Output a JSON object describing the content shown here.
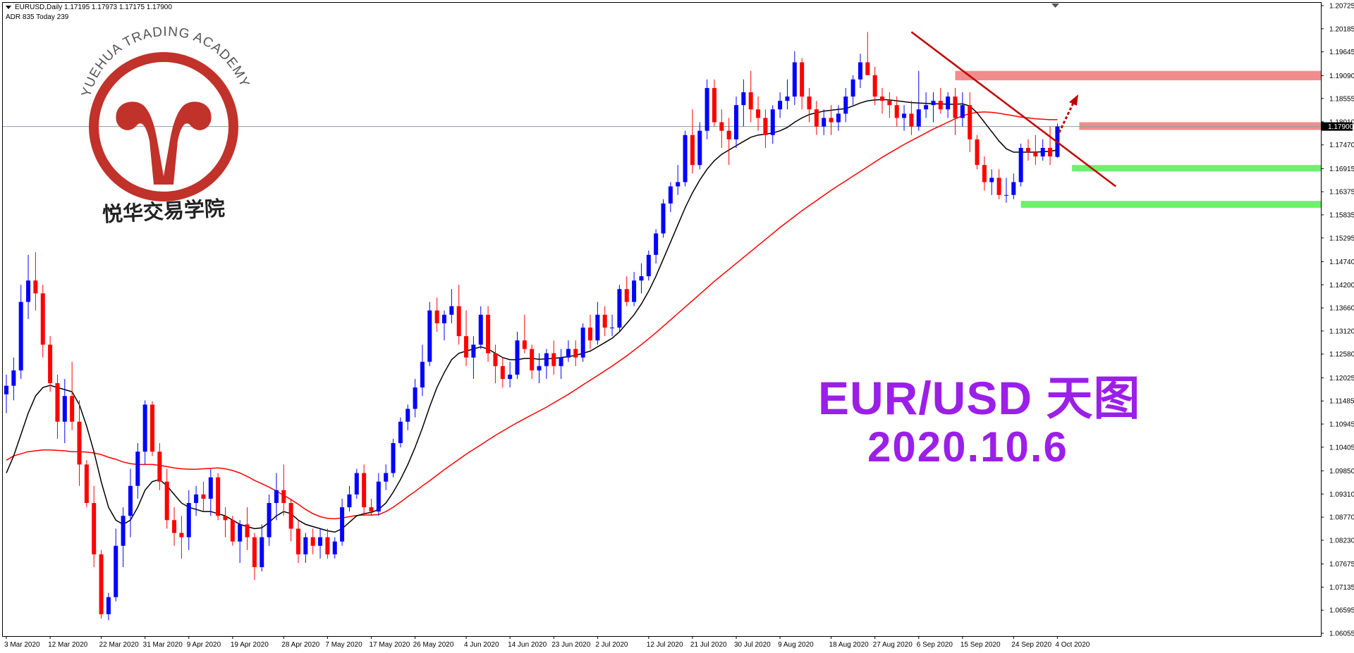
{
  "header": {
    "symbol_line": "EURUSD,Daily  1.17195 1.17973 1.17175 1.17900",
    "adr_line": "ADR 835  Today 239"
  },
  "overlay": {
    "title": "EUR/USD 天图",
    "date": "2020.10.6"
  },
  "logo": {
    "name_en": "YUEHUA TRADING ACADEMY",
    "name_cn": "悦华交易学院"
  },
  "colors": {
    "bull": "#0000ff",
    "bear": "#ff0000",
    "ma_fast": "#000000",
    "ma_slow": "#ff0000",
    "trendline": "#c00000",
    "resistance_zone": "#f08080",
    "support_zone": "#66ee66",
    "overlay_text": "#9b1fe8",
    "logo": "#c0322a",
    "price_tag_bg": "#000000"
  },
  "chart_data": {
    "type": "candlestick",
    "symbol": "EURUSD",
    "timeframe": "Daily",
    "current_price": "1.17900",
    "ylim": [
      1.06055,
      1.20725
    ],
    "y_ticks": [
      "1.20725",
      "1.20185",
      "1.19645",
      "1.19090",
      "1.18555",
      "1.18010",
      "1.17470",
      "1.16915",
      "1.16375",
      "1.15835",
      "1.15295",
      "1.14740",
      "1.14200",
      "1.13660",
      "1.13120",
      "1.12580",
      "1.12025",
      "1.11485",
      "1.10945",
      "1.10405",
      "1.09850",
      "1.09310",
      "1.08770",
      "1.08230",
      "1.07675",
      "1.07135",
      "1.06595",
      "1.06055"
    ],
    "x_ticks": [
      "3 Mar 2020",
      "12 Mar 2020",
      "22 Mar 2020",
      "31 Mar 2020",
      "9 Apr 2020",
      "19 Apr 2020",
      "28 Apr 2020",
      "7 May 2020",
      "17 May 2020",
      "26 May 2020",
      "4 Jun 2020",
      "14 Jun 2020",
      "23 Jun 2020",
      "2 Jul 2020",
      "12 Jul 2020",
      "21 Jul 2020",
      "30 Jul 2020",
      "9 Aug 2020",
      "18 Aug 2020",
      "27 Aug 2020",
      "6 Sep 2020",
      "15 Sep 2020",
      "24 Sep 2020",
      "4 Oct 2020"
    ],
    "series": [
      {
        "name": "",
        "kind": "ma_fast"
      },
      {
        "name": "",
        "kind": "ma_slow"
      }
    ],
    "candles": [
      [
        1.1164,
        1.121,
        1.112,
        1.1184
      ],
      [
        1.1184,
        1.125,
        1.115,
        1.122
      ],
      [
        1.122,
        1.142,
        1.12,
        1.138
      ],
      [
        1.138,
        1.149,
        1.134,
        1.143
      ],
      [
        1.143,
        1.1496,
        1.136,
        1.14
      ],
      [
        1.14,
        1.142,
        1.125,
        1.128
      ],
      [
        1.128,
        1.13,
        1.117,
        1.119
      ],
      [
        1.119,
        1.121,
        1.106,
        1.11
      ],
      [
        1.11,
        1.12,
        1.105,
        1.116
      ],
      [
        1.116,
        1.124,
        1.108,
        1.11
      ],
      [
        1.11,
        1.115,
        1.095,
        1.1
      ],
      [
        1.1,
        1.101,
        1.09,
        1.091
      ],
      [
        1.091,
        1.095,
        1.076,
        1.079
      ],
      [
        1.079,
        1.08,
        1.064,
        1.065
      ],
      [
        1.065,
        1.07,
        1.0636,
        1.069
      ],
      [
        1.069,
        1.085,
        1.068,
        1.081
      ],
      [
        1.081,
        1.09,
        1.076,
        1.088
      ],
      [
        1.088,
        1.099,
        1.083,
        1.095
      ],
      [
        1.095,
        1.105,
        1.092,
        1.103
      ],
      [
        1.103,
        1.115,
        1.1,
        1.114
      ],
      [
        1.114,
        1.1148,
        1.102,
        1.103
      ],
      [
        1.103,
        1.105,
        1.094,
        1.096
      ],
      [
        1.096,
        1.099,
        1.085,
        1.087
      ],
      [
        1.087,
        1.09,
        1.081,
        1.084
      ],
      [
        1.084,
        1.088,
        1.078,
        1.083
      ],
      [
        1.083,
        1.094,
        1.08,
        1.091
      ],
      [
        1.091,
        1.095,
        1.088,
        1.093
      ],
      [
        1.093,
        1.096,
        1.089,
        1.092
      ],
      [
        1.092,
        1.099,
        1.088,
        1.097
      ],
      [
        1.097,
        1.098,
        1.087,
        1.088
      ],
      [
        1.088,
        1.09,
        1.083,
        1.087
      ],
      [
        1.087,
        1.088,
        1.081,
        1.082
      ],
      [
        1.082,
        1.087,
        1.077,
        1.086
      ],
      [
        1.086,
        1.09,
        1.08,
        1.083
      ],
      [
        1.083,
        1.084,
        1.073,
        1.076
      ],
      [
        1.076,
        1.086,
        1.075,
        1.083
      ],
      [
        1.083,
        1.093,
        1.081,
        1.091
      ],
      [
        1.091,
        1.098,
        1.087,
        1.094
      ],
      [
        1.094,
        1.1,
        1.088,
        1.091
      ],
      [
        1.091,
        1.092,
        1.082,
        1.085
      ],
      [
        1.085,
        1.087,
        1.077,
        1.079
      ],
      [
        1.079,
        1.084,
        1.077,
        1.083
      ],
      [
        1.083,
        1.085,
        1.079,
        1.081
      ],
      [
        1.081,
        1.085,
        1.078,
        1.083
      ],
      [
        1.083,
        1.085,
        1.078,
        1.079
      ],
      [
        1.079,
        1.083,
        1.078,
        1.082
      ],
      [
        1.082,
        1.092,
        1.081,
        1.09
      ],
      [
        1.09,
        1.095,
        1.089,
        1.093
      ],
      [
        1.093,
        1.099,
        1.092,
        1.098
      ],
      [
        1.098,
        1.1,
        1.088,
        1.09
      ],
      [
        1.09,
        1.092,
        1.088,
        1.089
      ],
      [
        1.089,
        1.098,
        1.088,
        1.096
      ],
      [
        1.096,
        1.1,
        1.094,
        1.098
      ],
      [
        1.098,
        1.106,
        1.097,
        1.105
      ],
      [
        1.105,
        1.111,
        1.104,
        1.11
      ],
      [
        1.11,
        1.114,
        1.108,
        1.113
      ],
      [
        1.113,
        1.12,
        1.111,
        1.118
      ],
      [
        1.118,
        1.128,
        1.116,
        1.124
      ],
      [
        1.124,
        1.138,
        1.123,
        1.136
      ],
      [
        1.136,
        1.139,
        1.131,
        1.133
      ],
      [
        1.133,
        1.136,
        1.129,
        1.135
      ],
      [
        1.135,
        1.141,
        1.133,
        1.137
      ],
      [
        1.137,
        1.142,
        1.128,
        1.13
      ],
      [
        1.13,
        1.136,
        1.123,
        1.125
      ],
      [
        1.125,
        1.13,
        1.12,
        1.128
      ],
      [
        1.128,
        1.137,
        1.127,
        1.135
      ],
      [
        1.135,
        1.137,
        1.124,
        1.126
      ],
      [
        1.126,
        1.128,
        1.119,
        1.123
      ],
      [
        1.123,
        1.125,
        1.118,
        1.12
      ],
      [
        1.12,
        1.124,
        1.118,
        1.121
      ],
      [
        1.121,
        1.131,
        1.12,
        1.129
      ],
      [
        1.129,
        1.135,
        1.126,
        1.127
      ],
      [
        1.127,
        1.128,
        1.12,
        1.122
      ],
      [
        1.122,
        1.126,
        1.119,
        1.123
      ],
      [
        1.123,
        1.127,
        1.12,
        1.126
      ],
      [
        1.126,
        1.129,
        1.121,
        1.123
      ],
      [
        1.123,
        1.127,
        1.12,
        1.125
      ],
      [
        1.125,
        1.129,
        1.124,
        1.127
      ],
      [
        1.127,
        1.129,
        1.123,
        1.125
      ],
      [
        1.125,
        1.133,
        1.124,
        1.132
      ],
      [
        1.132,
        1.135,
        1.127,
        1.129
      ],
      [
        1.129,
        1.138,
        1.128,
        1.135
      ],
      [
        1.135,
        1.137,
        1.13,
        1.132
      ],
      [
        1.132,
        1.135,
        1.13,
        1.132
      ],
      [
        1.132,
        1.142,
        1.131,
        1.141
      ],
      [
        1.141,
        1.144,
        1.137,
        1.138
      ],
      [
        1.138,
        1.145,
        1.137,
        1.143
      ],
      [
        1.143,
        1.147,
        1.14,
        1.144
      ],
      [
        1.144,
        1.15,
        1.143,
        1.149
      ],
      [
        1.149,
        1.155,
        1.147,
        1.154
      ],
      [
        1.154,
        1.162,
        1.153,
        1.161
      ],
      [
        1.161,
        1.166,
        1.159,
        1.165
      ],
      [
        1.165,
        1.17,
        1.163,
        1.166
      ],
      [
        1.166,
        1.178,
        1.165,
        1.177
      ],
      [
        1.177,
        1.183,
        1.168,
        1.17
      ],
      [
        1.17,
        1.18,
        1.169,
        1.178
      ],
      [
        1.178,
        1.19,
        1.176,
        1.188
      ],
      [
        1.188,
        1.19,
        1.179,
        1.18
      ],
      [
        1.18,
        1.183,
        1.174,
        1.178
      ],
      [
        1.178,
        1.181,
        1.17,
        1.176
      ],
      [
        1.176,
        1.186,
        1.174,
        1.184
      ],
      [
        1.184,
        1.19,
        1.179,
        1.187
      ],
      [
        1.187,
        1.192,
        1.18,
        1.183
      ],
      [
        1.183,
        1.186,
        1.178,
        1.181
      ],
      [
        1.181,
        1.183,
        1.174,
        1.177
      ],
      [
        1.177,
        1.184,
        1.175,
        1.183
      ],
      [
        1.183,
        1.187,
        1.181,
        1.185
      ],
      [
        1.185,
        1.19,
        1.183,
        1.186
      ],
      [
        1.186,
        1.1966,
        1.184,
        1.194
      ],
      [
        1.194,
        1.195,
        1.183,
        1.186
      ],
      [
        1.186,
        1.188,
        1.18,
        1.183
      ],
      [
        1.183,
        1.185,
        1.177,
        1.179
      ],
      [
        1.179,
        1.183,
        1.177,
        1.181
      ],
      [
        1.181,
        1.184,
        1.177,
        1.18
      ],
      [
        1.18,
        1.184,
        1.178,
        1.182
      ],
      [
        1.182,
        1.188,
        1.18,
        1.186
      ],
      [
        1.186,
        1.191,
        1.184,
        1.19
      ],
      [
        1.19,
        1.196,
        1.188,
        1.194
      ],
      [
        1.194,
        1.2011,
        1.192,
        1.191
      ],
      [
        1.191,
        1.193,
        1.184,
        1.186
      ],
      [
        1.186,
        1.188,
        1.182,
        1.185
      ],
      [
        1.185,
        1.187,
        1.181,
        1.184
      ],
      [
        1.184,
        1.186,
        1.179,
        1.181
      ],
      [
        1.181,
        1.184,
        1.178,
        1.182
      ],
      [
        1.182,
        1.185,
        1.177,
        1.179
      ],
      [
        1.179,
        1.192,
        1.178,
        1.183
      ],
      [
        1.183,
        1.187,
        1.181,
        1.184
      ],
      [
        1.184,
        1.187,
        1.18,
        1.185
      ],
      [
        1.185,
        1.188,
        1.182,
        1.183
      ],
      [
        1.183,
        1.187,
        1.181,
        1.186
      ],
      [
        1.186,
        1.188,
        1.177,
        1.181
      ],
      [
        1.181,
        1.187,
        1.179,
        1.184
      ],
      [
        1.184,
        1.187,
        1.173,
        1.176
      ],
      [
        1.176,
        1.177,
        1.169,
        1.17
      ],
      [
        1.17,
        1.172,
        1.164,
        1.166
      ],
      [
        1.166,
        1.169,
        1.163,
        1.167
      ],
      [
        1.167,
        1.169,
        1.162,
        1.163
      ],
      [
        1.163,
        1.167,
        1.1612,
        1.163
      ],
      [
        1.163,
        1.168,
        1.162,
        1.166
      ],
      [
        1.166,
        1.175,
        1.165,
        1.174
      ],
      [
        1.174,
        1.176,
        1.171,
        1.173
      ],
      [
        1.173,
        1.177,
        1.17,
        1.172
      ],
      [
        1.172,
        1.176,
        1.171,
        1.174
      ],
      [
        1.174,
        1.179,
        1.17,
        1.172
      ],
      [
        1.1719,
        1.1797,
        1.1717,
        1.179
      ]
    ],
    "ma_fast": [
      1.098,
      1.102,
      1.107,
      1.112,
      1.116,
      1.118,
      1.1185,
      1.118,
      1.1175,
      1.117,
      1.114,
      1.109,
      1.103,
      1.096,
      1.09,
      1.087,
      1.086,
      1.087,
      1.09,
      1.094,
      1.096,
      1.0965,
      1.095,
      1.093,
      1.091,
      1.09,
      1.0895,
      1.089,
      1.089,
      1.0885,
      1.088,
      1.087,
      1.086,
      1.0855,
      1.085,
      1.0852,
      1.0865,
      1.088,
      1.089,
      1.0885,
      1.087,
      1.086,
      1.0855,
      1.085,
      1.0845,
      1.0842,
      1.085,
      1.0865,
      1.088,
      1.0885,
      1.0888,
      1.0895,
      1.091,
      1.0935,
      1.0965,
      1.1,
      1.104,
      1.1085,
      1.1135,
      1.118,
      1.1215,
      1.1245,
      1.126,
      1.1265,
      1.127,
      1.1275,
      1.127,
      1.126,
      1.125,
      1.1245,
      1.1245,
      1.1248,
      1.1248,
      1.1246,
      1.1247,
      1.1248,
      1.125,
      1.1252,
      1.1255,
      1.126,
      1.1265,
      1.1275,
      1.1285,
      1.1295,
      1.131,
      1.133,
      1.135,
      1.1375,
      1.1405,
      1.144,
      1.148,
      1.152,
      1.156,
      1.16,
      1.1635,
      1.1665,
      1.169,
      1.171,
      1.1725,
      1.1735,
      1.1745,
      1.1755,
      1.1765,
      1.177,
      1.1772,
      1.1775,
      1.178,
      1.1788,
      1.18,
      1.181,
      1.1818,
      1.1822,
      1.1826,
      1.1828,
      1.183,
      1.1832,
      1.1838,
      1.1845,
      1.185,
      1.1852,
      1.1853,
      1.1852,
      1.185,
      1.1848,
      1.1846,
      1.1845,
      1.1844,
      1.1843,
      1.1843,
      1.1842,
      1.1842,
      1.1843,
      1.1838,
      1.1822,
      1.18,
      1.1778,
      1.1756,
      1.1738,
      1.173,
      1.173,
      1.173,
      1.173,
      1.1731,
      1.1732,
      1.1735
    ],
    "ma_slow": [
      1.101,
      1.102,
      1.1025,
      1.103,
      1.1032,
      1.1034,
      1.1034,
      1.1033,
      1.1032,
      1.103,
      1.103,
      1.1029,
      1.1027,
      1.1023,
      1.1017,
      1.1012,
      1.1006,
      1.1002,
      1.1,
      1.1,
      1.1,
      1.0998,
      1.0995,
      1.0992,
      1.099,
      1.0989,
      1.0989,
      1.099,
      1.0991,
      1.0992,
      1.099,
      1.0986,
      1.098,
      1.0972,
      1.0963,
      1.0955,
      1.0947,
      1.0938,
      1.0928,
      1.0918,
      1.0907,
      1.0895,
      1.0885,
      1.0878,
      1.0874,
      1.0873,
      1.0875,
      1.0878,
      1.0881,
      1.0882,
      1.0882,
      1.0883,
      1.089,
      1.09,
      1.0912,
      1.0925,
      1.0937,
      1.095,
      1.0962,
      1.0975,
      1.0988,
      1.1,
      1.1012,
      1.1024,
      1.1035,
      1.1046,
      1.1057,
      1.1068,
      1.1078,
      1.1088,
      1.1098,
      1.1107,
      1.1116,
      1.1125,
      1.1134,
      1.1144,
      1.1154,
      1.1164,
      1.1175,
      1.1186,
      1.1197,
      1.1208,
      1.1219,
      1.123,
      1.1242,
      1.1254,
      1.1267,
      1.128,
      1.1294,
      1.1308,
      1.1323,
      1.1338,
      1.1353,
      1.1368,
      1.1383,
      1.1398,
      1.1413,
      1.1428,
      1.1442,
      1.1456,
      1.147,
      1.1484,
      1.1498,
      1.1512,
      1.1526,
      1.154,
      1.1554,
      1.1567,
      1.158,
      1.1593,
      1.1605,
      1.1617,
      1.1629,
      1.1641,
      1.1652,
      1.1663,
      1.1674,
      1.1685,
      1.1696,
      1.1707,
      1.1718,
      1.1728,
      1.1738,
      1.1748,
      1.1757,
      1.1766,
      1.1775,
      1.1784,
      1.1792,
      1.18,
      1.1808,
      1.1815,
      1.182,
      1.1823,
      1.1824,
      1.1823,
      1.1821,
      1.1818,
      1.1815,
      1.1812,
      1.181,
      1.1808,
      1.1807,
      1.1806,
      1.1806
    ],
    "annotations": {
      "resistance_zones": [
        [
          1.1898,
          1.192
        ],
        [
          1.1782,
          1.18
        ]
      ],
      "support_zones": [
        [
          1.1685,
          1.17
        ],
        [
          1.16,
          1.1616
        ]
      ],
      "current_price_line": 1.179,
      "trendline": {
        "from_index": 124,
        "from_price": 1.2011,
        "to_index": 152,
        "to_price": 1.165
      }
    }
  }
}
